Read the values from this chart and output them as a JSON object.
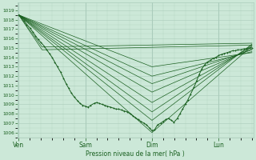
{
  "xlabel": "Pression niveau de la mer( hPa )",
  "bg_color": "#cce8d8",
  "grid_color": "#aaccbb",
  "line_color": "#1a6020",
  "ylim": [
    1005.5,
    1019.8
  ],
  "yticks": [
    1006,
    1007,
    1008,
    1009,
    1010,
    1011,
    1012,
    1013,
    1014,
    1015,
    1016,
    1017,
    1018,
    1019
  ],
  "xtick_labels": [
    "Ven",
    "Sam",
    "Dim",
    "Lun"
  ],
  "xtick_positions": [
    0,
    1,
    2,
    3
  ],
  "detail_t": [
    0.0,
    0.04,
    0.08,
    0.12,
    0.17,
    0.21,
    0.25,
    0.29,
    0.33,
    0.38,
    0.42,
    0.46,
    0.5,
    0.54,
    0.58,
    0.63,
    0.67,
    0.71,
    0.75,
    0.79,
    0.83,
    0.88,
    0.92,
    0.96,
    1.0,
    1.04,
    1.08,
    1.13,
    1.17,
    1.21,
    1.25,
    1.29,
    1.33,
    1.38,
    1.42,
    1.46,
    1.5,
    1.54,
    1.58,
    1.63,
    1.67,
    1.71,
    1.75,
    1.79,
    1.83,
    1.88,
    1.92,
    1.96,
    2.0,
    2.04,
    2.08,
    2.13,
    2.17,
    2.21,
    2.25,
    2.29,
    2.33,
    2.38,
    2.42,
    2.46,
    2.5,
    2.54,
    2.58,
    2.63,
    2.67,
    2.71,
    2.75,
    2.79,
    2.83,
    2.88,
    2.92,
    2.96,
    3.0,
    3.04,
    3.08,
    3.13,
    3.17,
    3.21,
    3.25,
    3.29,
    3.33,
    3.38,
    3.42,
    3.46,
    3.5
  ],
  "detail_p": [
    1018.5,
    1018.2,
    1017.9,
    1017.5,
    1017.1,
    1016.7,
    1016.3,
    1015.9,
    1015.6,
    1015.2,
    1014.8,
    1014.4,
    1014.0,
    1013.5,
    1013.0,
    1012.4,
    1011.8,
    1011.2,
    1010.7,
    1010.2,
    1009.8,
    1009.4,
    1009.1,
    1008.9,
    1008.8,
    1008.7,
    1008.9,
    1009.1,
    1009.2,
    1009.1,
    1009.0,
    1008.9,
    1008.8,
    1008.7,
    1008.6,
    1008.5,
    1008.5,
    1008.4,
    1008.3,
    1008.2,
    1008.0,
    1007.8,
    1007.6,
    1007.4,
    1007.2,
    1007.0,
    1006.8,
    1006.5,
    1006.2,
    1006.3,
    1006.8,
    1007.0,
    1007.2,
    1007.4,
    1007.5,
    1007.3,
    1007.1,
    1007.5,
    1008.0,
    1008.5,
    1009.0,
    1009.5,
    1010.1,
    1010.8,
    1011.5,
    1012.2,
    1012.8,
    1013.2,
    1013.5,
    1013.7,
    1013.9,
    1014.0,
    1014.2,
    1014.3,
    1014.4,
    1014.5,
    1014.6,
    1014.7,
    1014.7,
    1014.8,
    1014.8,
    1014.9,
    1014.9,
    1015.0,
    1015.0
  ],
  "ensemble_lines": [
    {
      "t": [
        0.0,
        2.0,
        3.5
      ],
      "p": [
        1018.5,
        1006.0,
        1015.2
      ]
    },
    {
      "t": [
        0.0,
        2.0,
        3.5
      ],
      "p": [
        1018.5,
        1007.3,
        1015.4
      ]
    },
    {
      "t": [
        0.0,
        2.0,
        3.5
      ],
      "p": [
        1018.5,
        1008.2,
        1015.3
      ]
    },
    {
      "t": [
        0.0,
        2.0,
        3.5
      ],
      "p": [
        1018.5,
        1009.2,
        1015.1
      ]
    },
    {
      "t": [
        0.0,
        2.0,
        3.5
      ],
      "p": [
        1018.5,
        1010.3,
        1014.9
      ]
    },
    {
      "t": [
        0.0,
        2.0,
        3.5
      ],
      "p": [
        1018.5,
        1011.2,
        1014.8
      ]
    },
    {
      "t": [
        0.0,
        2.0,
        3.5
      ],
      "p": [
        1018.5,
        1012.0,
        1014.6
      ]
    },
    {
      "t": [
        0.0,
        2.0,
        3.5
      ],
      "p": [
        1018.5,
        1013.0,
        1014.5
      ]
    },
    {
      "t": [
        0.0,
        0.35,
        3.5
      ],
      "p": [
        1018.5,
        1015.1,
        1015.5
      ]
    },
    {
      "t": [
        0.0,
        0.35,
        3.5
      ],
      "p": [
        1018.5,
        1014.8,
        1015.3
      ]
    }
  ],
  "xlim": [
    -0.02,
    3.52
  ]
}
